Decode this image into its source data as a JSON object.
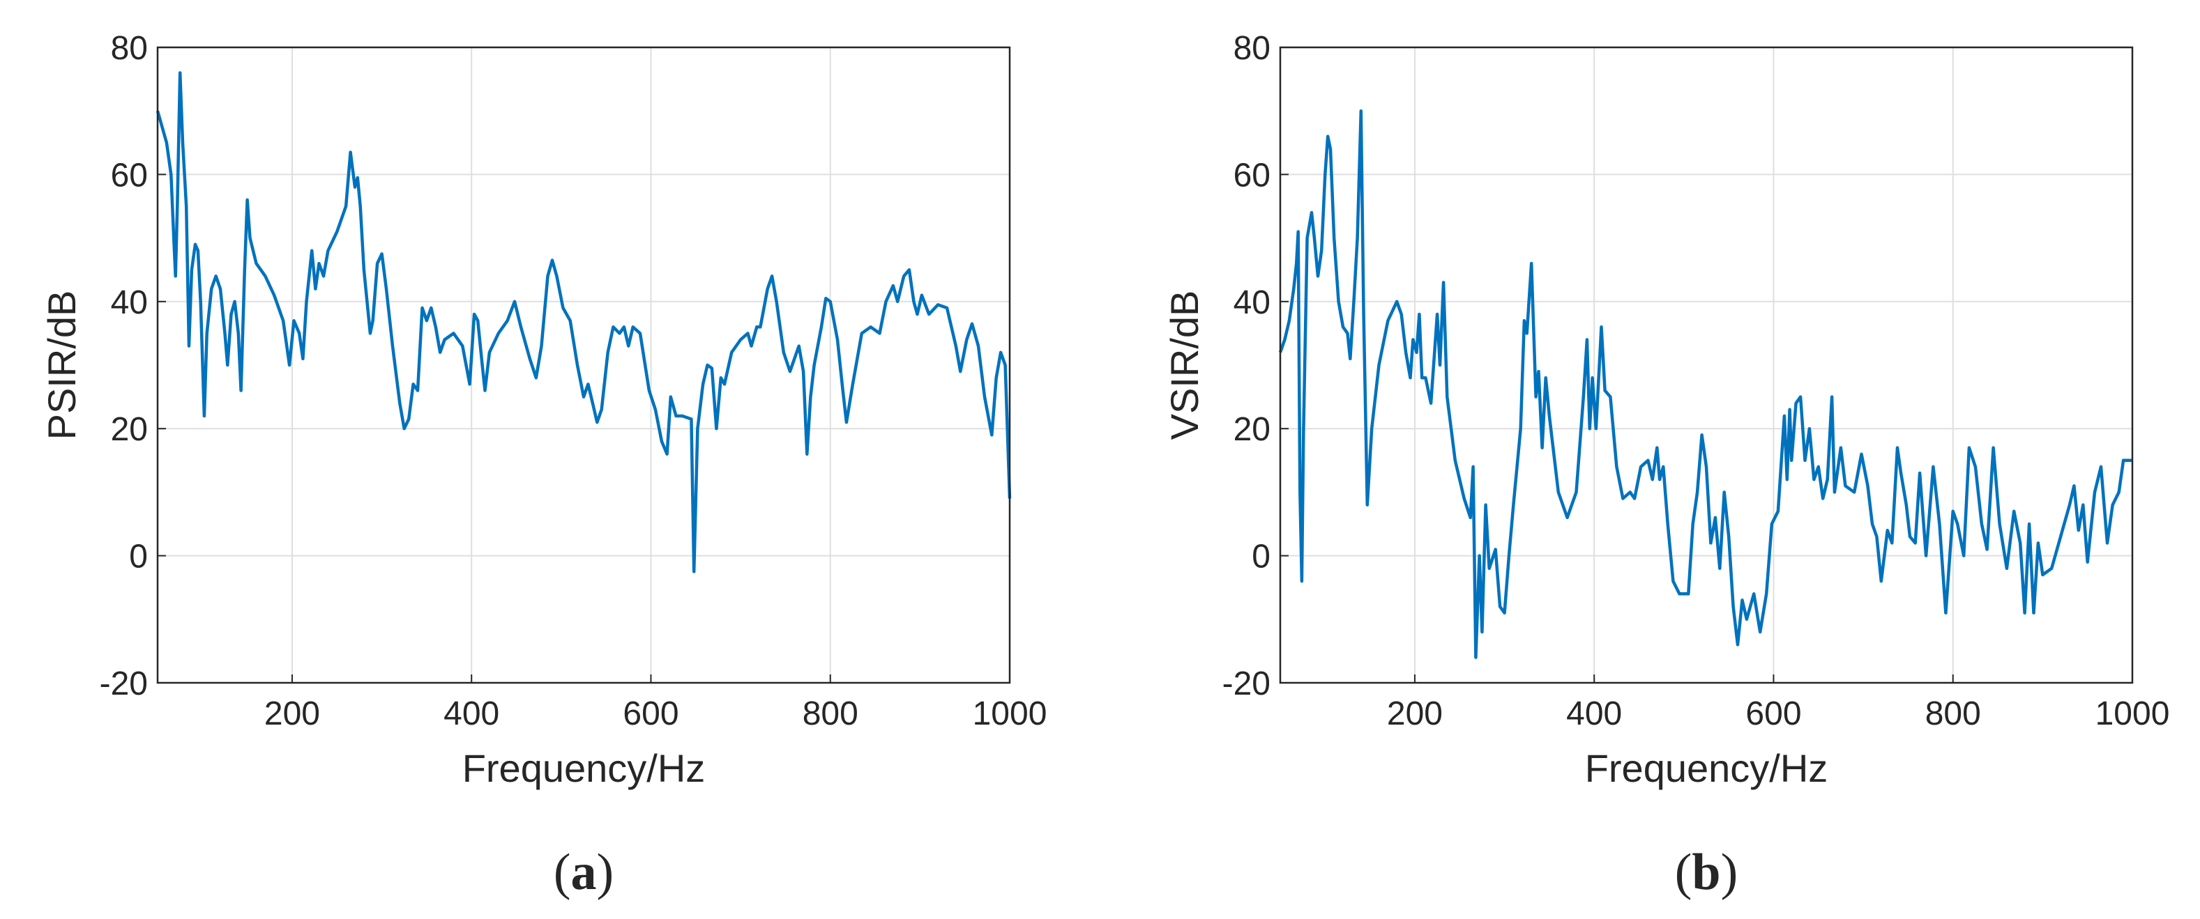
{
  "chart_data": [
    {
      "type": "line",
      "caption_open": "(",
      "caption": "a",
      "caption_close": ")",
      "xlabel": "Frequency/Hz",
      "ylabel": "PSIR/dB",
      "xlim": [
        50,
        1000
      ],
      "ylim": [
        -20,
        80
      ],
      "xticks": [
        200,
        400,
        600,
        800,
        1000
      ],
      "yticks": [
        -20,
        0,
        20,
        40,
        60,
        80
      ],
      "grid": true,
      "series": [
        {
          "color": "#0072bd",
          "x": [
            50,
            60,
            65,
            68,
            70,
            72,
            75,
            78,
            82,
            85,
            88,
            92,
            95,
            98,
            102,
            105,
            110,
            115,
            120,
            125,
            128,
            132,
            136,
            140,
            143,
            147,
            150,
            153,
            160,
            170,
            180,
            190,
            197,
            202,
            208,
            212,
            216,
            222,
            226,
            230,
            235,
            240,
            250,
            260,
            265,
            270,
            273,
            276,
            280,
            287,
            290,
            295,
            300,
            305,
            312,
            320,
            325,
            330,
            335,
            340,
            345,
            350,
            355,
            360,
            365,
            370,
            380,
            390,
            398,
            403,
            407,
            412,
            415,
            420,
            430,
            440,
            448,
            455,
            465,
            472,
            478,
            485,
            490,
            495,
            502,
            510,
            518,
            525,
            530,
            535,
            540,
            545,
            552,
            558,
            565,
            570,
            575,
            580,
            588,
            598,
            605,
            612,
            618,
            622,
            628,
            635,
            645,
            648,
            652,
            658,
            663,
            668,
            673,
            678,
            682,
            690,
            700,
            708,
            712,
            718,
            722,
            730,
            735,
            740,
            748,
            755,
            760,
            765,
            770,
            774,
            778,
            782,
            790,
            795,
            800,
            808,
            814,
            818,
            825,
            835,
            845,
            855,
            862,
            870,
            875,
            882,
            888,
            893,
            897,
            902,
            910,
            920,
            930,
            940,
            945,
            952,
            958,
            965,
            972,
            980,
            985,
            990,
            995,
            1000
          ],
          "values": [
            70,
            65,
            60,
            50,
            44,
            55,
            76,
            65,
            55,
            33,
            45,
            49,
            48,
            40,
            22,
            35,
            42,
            44,
            42,
            35,
            30,
            38,
            40,
            35,
            26,
            45,
            56,
            50,
            46,
            44,
            41,
            37,
            30,
            37,
            35,
            31,
            40,
            48,
            42,
            46,
            44,
            48,
            51,
            55,
            63.5,
            58,
            59.5,
            55,
            45,
            35,
            37,
            46,
            47.5,
            42,
            33,
            24,
            20,
            21.5,
            27,
            26,
            39,
            37,
            39,
            36,
            32,
            34,
            35,
            33,
            27,
            38,
            37,
            30,
            26,
            32,
            35,
            37,
            40,
            36,
            31,
            28,
            33,
            44,
            46.5,
            44,
            39,
            37,
            30,
            25,
            27,
            24,
            21,
            23,
            32,
            36,
            35,
            36,
            33,
            36,
            35,
            26,
            23,
            18,
            16,
            25,
            22,
            22,
            21.5,
            -2.5,
            20,
            27,
            30,
            29.5,
            20,
            28,
            27,
            32,
            34,
            35,
            33,
            36,
            36,
            42,
            44,
            40,
            32,
            29,
            31,
            33,
            29,
            16,
            25,
            30,
            36,
            40.5,
            40,
            34,
            26,
            21,
            27,
            35,
            36,
            35,
            40,
            42.5,
            40,
            44,
            45,
            40,
            38,
            41,
            38,
            39.5,
            39,
            33,
            29,
            34,
            36.5,
            33,
            25,
            19,
            28,
            32,
            30,
            9
          ]
        }
      ]
    },
    {
      "type": "line",
      "caption_open": "(",
      "caption": "b",
      "caption_close": ")",
      "xlabel": "Frequency/Hz",
      "ylabel": "VSIR/dB",
      "xlim": [
        50,
        1000
      ],
      "ylim": [
        -20,
        80
      ],
      "xticks": [
        200,
        400,
        600,
        800,
        1000
      ],
      "yticks": [
        -20,
        0,
        20,
        40,
        60,
        80
      ],
      "grid": true,
      "series": [
        {
          "color": "#0072bd",
          "x": [
            50,
            55,
            60,
            65,
            68,
            70,
            72,
            74,
            76,
            80,
            85,
            88,
            92,
            96,
            100,
            103,
            106,
            110,
            115,
            120,
            125,
            128,
            132,
            136,
            140,
            143,
            147,
            152,
            160,
            170,
            180,
            185,
            190,
            195,
            198,
            202,
            205,
            208,
            212,
            218,
            225,
            228,
            232,
            236,
            245,
            255,
            262,
            265,
            268,
            272,
            275,
            279,
            283,
            290,
            295,
            300,
            305,
            310,
            318,
            322,
            325,
            330,
            335,
            338,
            342,
            346,
            350,
            360,
            370,
            380,
            388,
            392,
            395,
            398,
            402,
            408,
            412,
            418,
            425,
            432,
            440,
            445,
            452,
            460,
            465,
            470,
            473,
            477,
            482,
            488,
            495,
            505,
            510,
            515,
            520,
            525,
            530,
            535,
            540,
            545,
            550,
            555,
            560,
            565,
            570,
            578,
            585,
            592,
            598,
            605,
            612,
            615,
            618,
            620,
            625,
            630,
            635,
            640,
            645,
            650,
            655,
            660,
            665,
            668,
            675,
            680,
            690,
            698,
            705,
            710,
            715,
            720,
            727,
            732,
            738,
            742,
            748,
            752,
            758,
            763,
            770,
            778,
            785,
            792,
            800,
            805,
            812,
            818,
            825,
            832,
            838,
            845,
            852,
            860,
            868,
            875,
            880,
            885,
            890,
            895,
            900,
            910,
            920,
            930,
            935,
            940,
            945,
            950,
            958,
            965,
            972,
            978,
            985,
            990,
            1000
          ],
          "values": [
            32,
            34,
            37,
            42,
            46,
            51,
            10,
            -4,
            20,
            50,
            54,
            50,
            44,
            48,
            60,
            66,
            64,
            50,
            40,
            36,
            35,
            31,
            40,
            50,
            70,
            38,
            8,
            20,
            30,
            37,
            40,
            38,
            32,
            28,
            34,
            32,
            38,
            28,
            28,
            24,
            38,
            30,
            43,
            25,
            15,
            9,
            6,
            14,
            -16,
            0,
            -12,
            8,
            -2,
            1,
            -8,
            -9,
            0,
            8,
            20,
            37,
            35,
            46,
            25,
            29,
            17,
            28,
            22,
            10,
            6,
            10,
            25,
            34,
            20,
            28,
            20,
            36,
            26,
            25,
            14,
            9,
            10,
            9,
            14,
            15,
            12,
            17,
            12,
            14,
            5,
            -4,
            -6,
            -6,
            5,
            10,
            19,
            14,
            2,
            6,
            -2,
            10,
            3,
            -8,
            -14,
            -7,
            -10,
            -6,
            -12,
            -6,
            5,
            7,
            22,
            12,
            23,
            15,
            24,
            25,
            15,
            20,
            12,
            14,
            9,
            12,
            25,
            10,
            17,
            11,
            10,
            16,
            11,
            5,
            3,
            -4,
            4,
            2,
            17,
            13,
            8,
            3,
            2,
            13,
            0,
            14,
            5,
            -9,
            7,
            5,
            0,
            17,
            14,
            5,
            1,
            17,
            5,
            -2,
            7,
            2,
            -9,
            5,
            -9,
            2,
            -3,
            -2,
            3,
            8,
            11,
            4,
            8,
            -1,
            10,
            14,
            2,
            8,
            10,
            15,
            15
          ]
        }
      ]
    }
  ]
}
